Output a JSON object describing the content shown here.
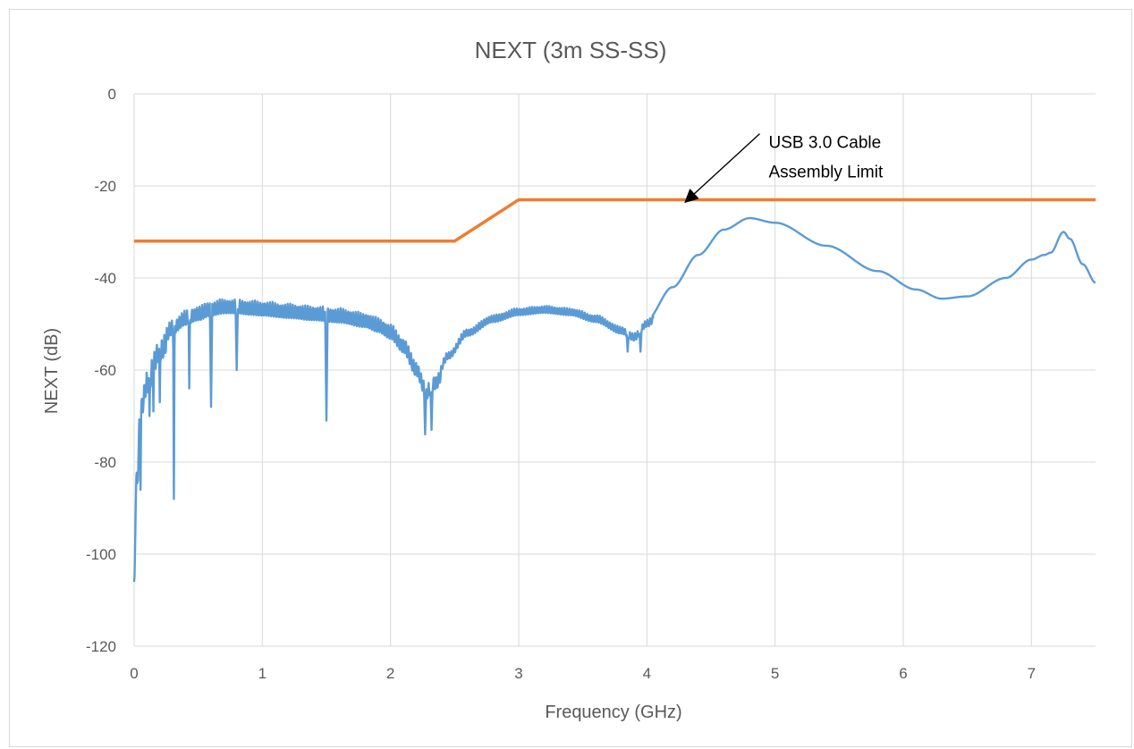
{
  "chart_data": {
    "type": "line",
    "title": "NEXT (3m SS-SS)",
    "xlabel": "Frequency (GHz)",
    "ylabel": "NEXT (dB)",
    "xlim": [
      0,
      7.5
    ],
    "ylim": [
      -120,
      0
    ],
    "xticks": [
      0,
      1,
      2,
      3,
      4,
      5,
      6,
      7
    ],
    "yticks": [
      0,
      -20,
      -40,
      -60,
      -80,
      -100,
      -120
    ],
    "grid": true,
    "legend": "none",
    "series": [
      {
        "color": "#5b9bd5",
        "description_points": [
          [
            0.0,
            -106
          ],
          [
            0.02,
            -82
          ],
          [
            0.05,
            -66
          ],
          [
            0.1,
            -60
          ],
          [
            0.2,
            -53
          ],
          [
            0.3,
            -49
          ],
          [
            0.4,
            -47
          ],
          [
            0.5,
            -46
          ],
          [
            0.6,
            -45
          ],
          [
            0.7,
            -44.5
          ],
          [
            0.8,
            -44.5
          ],
          [
            0.9,
            -44.8
          ],
          [
            1.0,
            -45
          ],
          [
            1.2,
            -45.5
          ],
          [
            1.4,
            -46
          ],
          [
            1.6,
            -46.5
          ],
          [
            1.8,
            -47.5
          ],
          [
            1.9,
            -48.5
          ],
          [
            2.0,
            -50
          ],
          [
            2.1,
            -53
          ],
          [
            2.2,
            -58
          ],
          [
            2.28,
            -63
          ],
          [
            2.35,
            -61
          ],
          [
            2.45,
            -56
          ],
          [
            2.6,
            -51
          ],
          [
            2.8,
            -48
          ],
          [
            3.0,
            -46.5
          ],
          [
            3.2,
            -46
          ],
          [
            3.4,
            -46.5
          ],
          [
            3.6,
            -48
          ],
          [
            3.8,
            -50.5
          ],
          [
            3.9,
            -52
          ],
          [
            4.0,
            -49
          ],
          [
            4.2,
            -42
          ],
          [
            4.4,
            -35
          ],
          [
            4.6,
            -29.5
          ],
          [
            4.8,
            -27
          ],
          [
            5.0,
            -28
          ],
          [
            5.4,
            -33
          ],
          [
            5.8,
            -38.5
          ],
          [
            6.1,
            -42.5
          ],
          [
            6.3,
            -44.5
          ],
          [
            6.5,
            -44
          ],
          [
            6.8,
            -40
          ],
          [
            7.0,
            -36
          ],
          [
            7.1,
            -35
          ],
          [
            7.15,
            -34.5
          ],
          [
            7.25,
            -30
          ],
          [
            7.3,
            -31.5
          ],
          [
            7.4,
            -37
          ],
          [
            7.5,
            -41
          ]
        ],
        "dips": [
          [
            0.03,
            -84
          ],
          [
            0.05,
            -86
          ],
          [
            0.12,
            -70
          ],
          [
            0.15,
            -69
          ],
          [
            0.2,
            -67
          ],
          [
            0.31,
            -88
          ],
          [
            0.43,
            -64
          ],
          [
            0.6,
            -68
          ],
          [
            0.8,
            -60
          ],
          [
            1.5,
            -71
          ],
          [
            2.27,
            -74
          ],
          [
            2.32,
            -73
          ],
          [
            3.85,
            -56
          ],
          [
            3.95,
            -56
          ]
        ]
      },
      {
        "name": "USB 3.0 Cable Assembly Limit",
        "color": "#ed7d31",
        "points": [
          [
            0,
            -32
          ],
          [
            2.5,
            -32
          ],
          [
            3.0,
            -23
          ],
          [
            7.5,
            -23
          ]
        ]
      }
    ],
    "annotations": [
      {
        "lines": [
          "USB 3.0 Cable",
          "Assembly  Limit"
        ],
        "arrow_from": [
          4.95,
          -11
        ],
        "arrow_to": [
          4.3,
          -23.5
        ]
      }
    ]
  }
}
